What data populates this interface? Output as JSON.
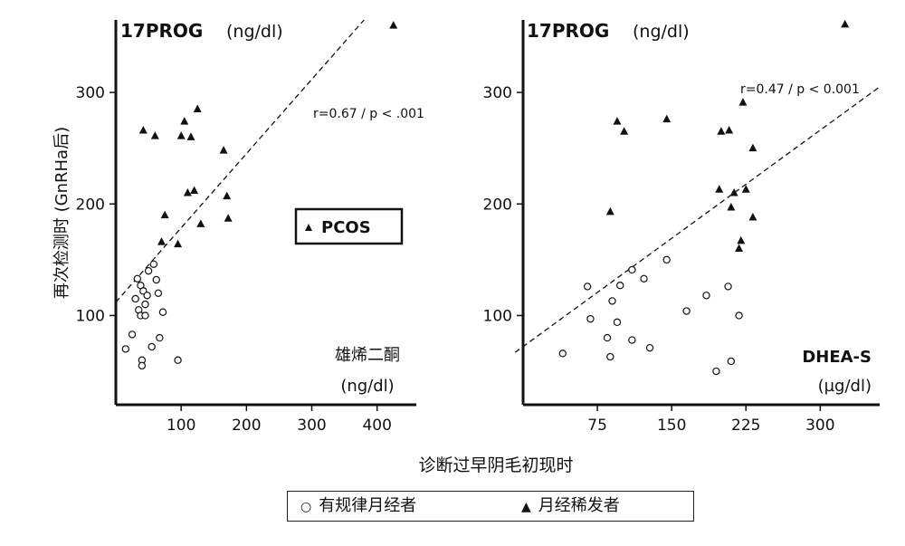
{
  "y_axis_label": "再次检测时 (GnRHa后)",
  "x_axis_label": "诊断过早阴毛初现时",
  "legend": [
    {
      "symbol": "open-circle",
      "label": "有规律月经者"
    },
    {
      "symbol": "filled-triangle",
      "label": "月经稀发者"
    }
  ],
  "colors": {
    "marker": "#111111",
    "background": "#ffffff"
  },
  "chart_data": [
    {
      "type": "scatter",
      "title": "17PROG",
      "title_unit": "(ng/dl)",
      "xlabel": "雄烯二酮",
      "xlabel_unit": "(ng/dl)",
      "xlim": [
        0,
        460
      ],
      "ylim": [
        20,
        365
      ],
      "xticks": [
        100,
        200,
        300,
        400
      ],
      "yticks": [
        100,
        200,
        300
      ],
      "annotation": "r=0.67 / p < .001",
      "inset_label": "PCOS",
      "trendline": {
        "x": [
          0,
          380
        ],
        "y": [
          112,
          365
        ]
      },
      "series": [
        {
          "name": "有规律月经者",
          "marker": "open-circle",
          "points": [
            [
              15,
              70
            ],
            [
              25,
              83
            ],
            [
              30,
              115
            ],
            [
              33,
              133
            ],
            [
              35,
              105
            ],
            [
              38,
              127
            ],
            [
              38,
              100
            ],
            [
              40,
              60
            ],
            [
              40,
              55
            ],
            [
              42,
              122
            ],
            [
              45,
              110
            ],
            [
              45,
              100
            ],
            [
              48,
              118
            ],
            [
              50,
              140
            ],
            [
              55,
              72
            ],
            [
              58,
              146
            ],
            [
              62,
              132
            ],
            [
              65,
              120
            ],
            [
              67,
              80
            ],
            [
              72,
              103
            ],
            [
              95,
              60
            ]
          ]
        },
        {
          "name": "月经稀发者",
          "marker": "filled-triangle",
          "points": [
            [
              42,
              266
            ],
            [
              60,
              261
            ],
            [
              70,
              166
            ],
            [
              75,
              190
            ],
            [
              95,
              164
            ],
            [
              100,
              261
            ],
            [
              105,
              274
            ],
            [
              110,
              210
            ],
            [
              115,
              260
            ],
            [
              120,
              212
            ],
            [
              125,
              285
            ],
            [
              130,
              182
            ],
            [
              165,
              248
            ],
            [
              170,
              207
            ],
            [
              172,
              187
            ],
            [
              425,
              360
            ]
          ]
        }
      ]
    },
    {
      "type": "scatter",
      "title": "17PROG",
      "title_unit": "(ng/dl)",
      "xlabel": "DHEA-S",
      "xlabel_unit": "(µg/dl)",
      "xlim": [
        0,
        360
      ],
      "ylim": [
        20,
        365
      ],
      "xticks": [
        75,
        150,
        225,
        300
      ],
      "yticks": [
        100,
        200,
        300
      ],
      "annotation": "r=0.47 / p < 0.001",
      "trendline": {
        "x": [
          -8,
          360
        ],
        "y": [
          67,
          305
        ]
      },
      "series": [
        {
          "name": "有规律月经者",
          "marker": "open-circle",
          "points": [
            [
              40,
              66
            ],
            [
              65,
              126
            ],
            [
              68,
              97
            ],
            [
              85,
              80
            ],
            [
              88,
              63
            ],
            [
              90,
              113
            ],
            [
              95,
              94
            ],
            [
              98,
              127
            ],
            [
              110,
              78
            ],
            [
              110,
              141
            ],
            [
              122,
              133
            ],
            [
              128,
              71
            ],
            [
              145,
              150
            ],
            [
              165,
              104
            ],
            [
              185,
              118
            ],
            [
              195,
              50
            ],
            [
              207,
              126
            ],
            [
              210,
              59
            ],
            [
              218,
              100
            ]
          ]
        },
        {
          "name": "月经稀发者",
          "marker": "filled-triangle",
          "points": [
            [
              88,
              193
            ],
            [
              95,
              274
            ],
            [
              102,
              265
            ],
            [
              145,
              276
            ],
            [
              198,
              213
            ],
            [
              200,
              265
            ],
            [
              208,
              266
            ],
            [
              210,
              197
            ],
            [
              213,
              210
            ],
            [
              218,
              160
            ],
            [
              220,
              167
            ],
            [
              222,
              291
            ],
            [
              225,
              213
            ],
            [
              232,
              250
            ],
            [
              232,
              188
            ],
            [
              325,
              361
            ]
          ]
        }
      ]
    }
  ]
}
